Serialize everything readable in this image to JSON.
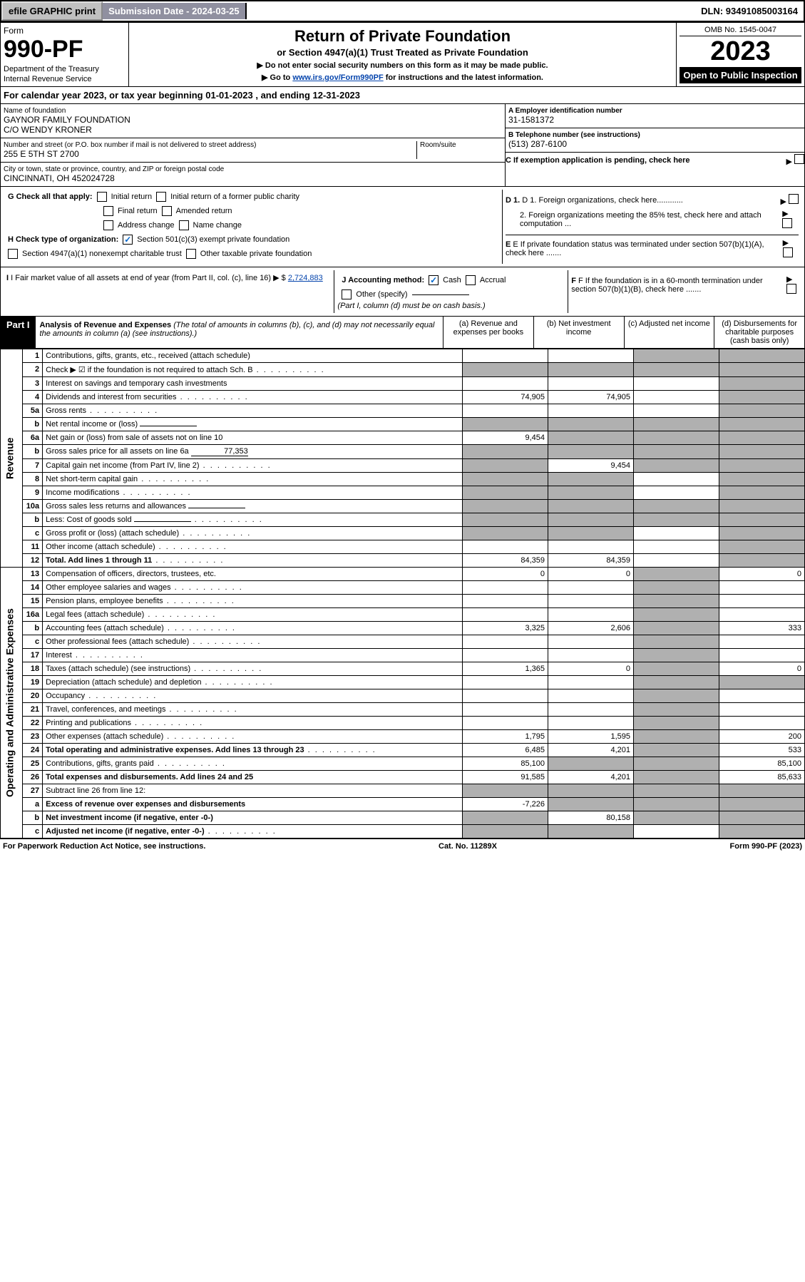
{
  "topbar": {
    "efile": "efile GRAPHIC print",
    "submission_label": "Submission Date - ",
    "submission_date": "2024-03-25",
    "dln_label": "DLN: ",
    "dln": "93491085003164"
  },
  "header": {
    "form_label": "Form",
    "form_no": "990-PF",
    "dept1": "Department of the Treasury",
    "dept2": "Internal Revenue Service",
    "title": "Return of Private Foundation",
    "subtitle1": "or Section 4947(a)(1) Trust Treated as Private Foundation",
    "subtitle2a": "▶ Do not enter social security numbers on this form as it may be made public.",
    "subtitle2b": "▶ Go to ",
    "subtitle2_link": "www.irs.gov/Form990PF",
    "subtitle2c": " for instructions and the latest information.",
    "omb": "OMB No. 1545-0047",
    "year": "2023",
    "open_pub": "Open to Public Inspection"
  },
  "calyear": {
    "prefix": "For calendar year 2023, or tax year beginning ",
    "begin": "01-01-2023",
    "mid": " , and ending ",
    "end": "12-31-2023"
  },
  "entity": {
    "name_lbl": "Name of foundation",
    "name1": "GAYNOR FAMILY FOUNDATION",
    "name2": "C/O WENDY KRONER",
    "addr_lbl": "Number and street (or P.O. box number if mail is not delivered to street address)",
    "room_lbl": "Room/suite",
    "addr": "255 E 5TH ST 2700",
    "city_lbl": "City or town, state or province, country, and ZIP or foreign postal code",
    "city": "CINCINNATI, OH  452024728",
    "ein_lbl": "A Employer identification number",
    "ein": "31-1581372",
    "phone_lbl": "B Telephone number (see instructions)",
    "phone": "(513) 287-6100",
    "c_lbl": "C If exemption application is pending, check here",
    "d1_lbl": "D 1. Foreign organizations, check here............",
    "d2_lbl": "2. Foreign organizations meeting the 85% test, check here and attach computation ...",
    "e_lbl": "E  If private foundation status was terminated under section 507(b)(1)(A), check here .......",
    "f_lbl": "F  If the foundation is in a 60-month termination under section 507(b)(1)(B), check here .......",
    "g_lbl": "G Check all that apply:",
    "g_opts": [
      "Initial return",
      "Initial return of a former public charity",
      "Final return",
      "Amended return",
      "Address change",
      "Name change"
    ],
    "h_lbl": "H Check type of organization:",
    "h1": "Section 501(c)(3) exempt private foundation",
    "h2": "Section 4947(a)(1) nonexempt charitable trust",
    "h3": "Other taxable private foundation",
    "i_lbl": "I Fair market value of all assets at end of year (from Part II, col. (c), line 16) ▶ $ ",
    "i_val": "2,724,883",
    "j_lbl": "J Accounting method:",
    "j_cash": "Cash",
    "j_accrual": "Accrual",
    "j_other": "Other (specify)",
    "j_note": "(Part I, column (d) must be on cash basis.)"
  },
  "part1": {
    "hdr": "Part I",
    "title": "Analysis of Revenue and Expenses",
    "note": " (The total of amounts in columns (b), (c), and (d) may not necessarily equal the amounts in column (a) (see instructions).)",
    "cols": {
      "a": "(a) Revenue and expenses per books",
      "b": "(b) Net investment income",
      "c": "(c) Adjusted net income",
      "d": "(d) Disbursements for charitable purposes (cash basis only)"
    }
  },
  "sections": {
    "revenue": "Revenue",
    "expenses": "Operating and Administrative Expenses"
  },
  "rows": [
    {
      "n": "1",
      "d": "Contributions, gifts, grants, etc., received (attach schedule)",
      "a": "",
      "b": "",
      "c": "g",
      "dd": "g"
    },
    {
      "n": "2",
      "d": "Check ▶ ☑ if the foundation is not required to attach Sch. B",
      "dots": true,
      "a": "g",
      "b": "g",
      "c": "g",
      "dd": "g"
    },
    {
      "n": "3",
      "d": "Interest on savings and temporary cash investments",
      "a": "",
      "b": "",
      "c": "",
      "dd": "g"
    },
    {
      "n": "4",
      "d": "Dividends and interest from securities",
      "dots": true,
      "a": "74,905",
      "b": "74,905",
      "c": "",
      "dd": "g"
    },
    {
      "n": "5a",
      "d": "Gross rents",
      "dots": true,
      "a": "",
      "b": "",
      "c": "",
      "dd": "g"
    },
    {
      "n": "b",
      "d": "Net rental income or (loss)",
      "inline": "",
      "a": "g",
      "b": "g",
      "c": "g",
      "dd": "g"
    },
    {
      "n": "6a",
      "d": "Net gain or (loss) from sale of assets not on line 10",
      "a": "9,454",
      "b": "g",
      "c": "g",
      "dd": "g"
    },
    {
      "n": "b",
      "d": "Gross sales price for all assets on line 6a",
      "inline": "77,353",
      "a": "g",
      "b": "g",
      "c": "g",
      "dd": "g"
    },
    {
      "n": "7",
      "d": "Capital gain net income (from Part IV, line 2)",
      "dots": true,
      "a": "g",
      "b": "9,454",
      "c": "g",
      "dd": "g"
    },
    {
      "n": "8",
      "d": "Net short-term capital gain",
      "dots": true,
      "a": "g",
      "b": "g",
      "c": "",
      "dd": "g"
    },
    {
      "n": "9",
      "d": "Income modifications",
      "dots": true,
      "a": "g",
      "b": "g",
      "c": "",
      "dd": "g"
    },
    {
      "n": "10a",
      "d": "Gross sales less returns and allowances",
      "inline": "",
      "a": "g",
      "b": "g",
      "c": "g",
      "dd": "g"
    },
    {
      "n": "b",
      "d": "Less: Cost of goods sold",
      "dots": true,
      "inline": "",
      "a": "g",
      "b": "g",
      "c": "g",
      "dd": "g"
    },
    {
      "n": "c",
      "d": "Gross profit or (loss) (attach schedule)",
      "dots": true,
      "a": "g",
      "b": "g",
      "c": "",
      "dd": "g"
    },
    {
      "n": "11",
      "d": "Other income (attach schedule)",
      "dots": true,
      "a": "",
      "b": "",
      "c": "",
      "dd": "g"
    },
    {
      "n": "12",
      "d": "Total. Add lines 1 through 11",
      "dots": true,
      "bold": true,
      "a": "84,359",
      "b": "84,359",
      "c": "",
      "dd": "g"
    }
  ],
  "exp_rows": [
    {
      "n": "13",
      "d": "Compensation of officers, directors, trustees, etc.",
      "a": "0",
      "b": "0",
      "c": "g",
      "dd": "0"
    },
    {
      "n": "14",
      "d": "Other employee salaries and wages",
      "dots": true,
      "a": "",
      "b": "",
      "c": "g",
      "dd": ""
    },
    {
      "n": "15",
      "d": "Pension plans, employee benefits",
      "dots": true,
      "a": "",
      "b": "",
      "c": "g",
      "dd": ""
    },
    {
      "n": "16a",
      "d": "Legal fees (attach schedule)",
      "dots": true,
      "a": "",
      "b": "",
      "c": "g",
      "dd": ""
    },
    {
      "n": "b",
      "d": "Accounting fees (attach schedule)",
      "dots": true,
      "a": "3,325",
      "b": "2,606",
      "c": "g",
      "dd": "333"
    },
    {
      "n": "c",
      "d": "Other professional fees (attach schedule)",
      "dots": true,
      "a": "",
      "b": "",
      "c": "g",
      "dd": ""
    },
    {
      "n": "17",
      "d": "Interest",
      "dots": true,
      "a": "",
      "b": "",
      "c": "g",
      "dd": ""
    },
    {
      "n": "18",
      "d": "Taxes (attach schedule) (see instructions)",
      "dots": true,
      "a": "1,365",
      "b": "0",
      "c": "g",
      "dd": "0"
    },
    {
      "n": "19",
      "d": "Depreciation (attach schedule) and depletion",
      "dots": true,
      "a": "",
      "b": "",
      "c": "g",
      "dd": "g"
    },
    {
      "n": "20",
      "d": "Occupancy",
      "dots": true,
      "a": "",
      "b": "",
      "c": "g",
      "dd": ""
    },
    {
      "n": "21",
      "d": "Travel, conferences, and meetings",
      "dots": true,
      "a": "",
      "b": "",
      "c": "g",
      "dd": ""
    },
    {
      "n": "22",
      "d": "Printing and publications",
      "dots": true,
      "a": "",
      "b": "",
      "c": "g",
      "dd": ""
    },
    {
      "n": "23",
      "d": "Other expenses (attach schedule)",
      "dots": true,
      "a": "1,795",
      "b": "1,595",
      "c": "g",
      "dd": "200"
    },
    {
      "n": "24",
      "d": "Total operating and administrative expenses. Add lines 13 through 23",
      "dots": true,
      "bold": true,
      "a": "6,485",
      "b": "4,201",
      "c": "g",
      "dd": "533"
    },
    {
      "n": "25",
      "d": "Contributions, gifts, grants paid",
      "dots": true,
      "a": "85,100",
      "b": "g",
      "c": "g",
      "dd": "85,100"
    },
    {
      "n": "26",
      "d": "Total expenses and disbursements. Add lines 24 and 25",
      "bold": true,
      "a": "91,585",
      "b": "4,201",
      "c": "g",
      "dd": "85,633"
    },
    {
      "n": "27",
      "d": "Subtract line 26 from line 12:",
      "a": "g",
      "b": "g",
      "c": "g",
      "dd": "g"
    },
    {
      "n": "a",
      "d": "Excess of revenue over expenses and disbursements",
      "bold": true,
      "a": "-7,226",
      "b": "g",
      "c": "g",
      "dd": "g"
    },
    {
      "n": "b",
      "d": "Net investment income (if negative, enter -0-)",
      "bold": true,
      "a": "g",
      "b": "80,158",
      "c": "g",
      "dd": "g"
    },
    {
      "n": "c",
      "d": "Adjusted net income (if negative, enter -0-)",
      "dots": true,
      "bold": true,
      "a": "g",
      "b": "g",
      "c": "",
      "dd": "g"
    }
  ],
  "footer": {
    "left": "For Paperwork Reduction Act Notice, see instructions.",
    "mid": "Cat. No. 11289X",
    "right": "Form 990-PF (2023)"
  },
  "colors": {
    "grey_cell": "#b0b0b0",
    "link": "#0645ad",
    "topbar_btn": "#c0c0c0",
    "topbar_sub": "#9090a0"
  }
}
